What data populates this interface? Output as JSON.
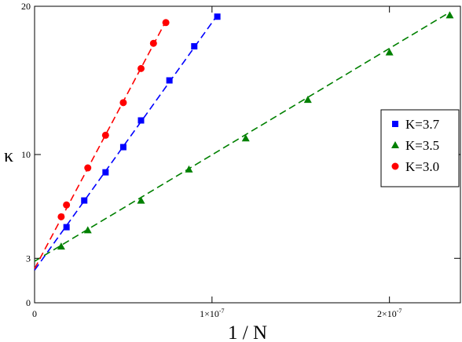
{
  "chart_data": {
    "type": "scatter",
    "xlabel": "1 / N",
    "ylabel": "κ",
    "xlim": [
      0,
      2.4e-07
    ],
    "ylim": [
      0,
      20
    ],
    "x_ticks": [
      {
        "value": 0,
        "label": "0",
        "exp": ""
      },
      {
        "value": 1e-07,
        "label": "1×10",
        "exp": "-7"
      },
      {
        "value": 2e-07,
        "label": "2×10",
        "exp": "-7"
      }
    ],
    "y_ticks": [
      {
        "value": 0,
        "label": "0"
      },
      {
        "value": 3,
        "label": "3"
      },
      {
        "value": 10,
        "label": "10"
      },
      {
        "value": 20,
        "label": "20"
      }
    ],
    "legend_position": "right",
    "series": [
      {
        "name": "K=3.7",
        "color": "#0000ff",
        "marker": "square",
        "x": [
          1.8e-08,
          2.8e-08,
          4e-08,
          5e-08,
          6e-08,
          7.6e-08,
          9e-08,
          1.03e-07
        ],
        "y": [
          5.1,
          6.9,
          8.8,
          10.5,
          12.3,
          15.0,
          17.3,
          19.3
        ],
        "fit": {
          "x": [
            0,
            1.03e-07
          ],
          "y": [
            2.2,
            19.4
          ]
        }
      },
      {
        "name": "K=3.5",
        "color": "#008000",
        "marker": "triangle",
        "x": [
          1.5e-08,
          3e-08,
          6e-08,
          8.7e-08,
          1.19e-07,
          1.54e-07,
          2e-07,
          2.34e-07
        ],
        "y": [
          3.8,
          4.9,
          6.9,
          9.0,
          11.1,
          13.7,
          16.9,
          19.4
        ],
        "fit": {
          "x": [
            0,
            2.34e-07
          ],
          "y": [
            2.8,
            19.6
          ]
        }
      },
      {
        "name": "K=3.0",
        "color": "#ff0000",
        "marker": "circle",
        "x": [
          1.5e-08,
          1.8e-08,
          3e-08,
          4e-08,
          5e-08,
          6e-08,
          6.7e-08,
          7.4e-08
        ],
        "y": [
          5.8,
          6.6,
          9.1,
          11.3,
          13.5,
          15.8,
          17.5,
          18.9
        ],
        "fit": {
          "x": [
            0,
            7.4e-08
          ],
          "y": [
            2.3,
            19.0
          ]
        }
      }
    ]
  }
}
